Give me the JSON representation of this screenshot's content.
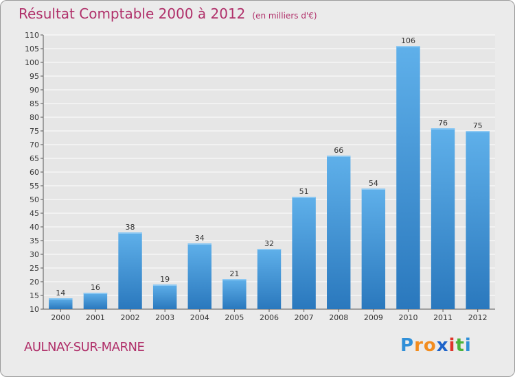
{
  "page": {
    "title": "Résultat Comptable 2000 à 2012",
    "subtitle": "(en milliers d'€)",
    "commune": "AULNAY-SUR-MARNE",
    "logo": {
      "letters": [
        "P",
        "r",
        "o",
        "x",
        "i",
        "t",
        "i"
      ],
      "colors": [
        "#2f8fd8",
        "#f28c1e",
        "#f28c1e",
        "#1e63c9",
        "#e0342a",
        "#4bb33a",
        "#2f8fd8"
      ]
    }
  },
  "chart_data": {
    "type": "bar",
    "title": "Résultat Comptable 2000 à 2012",
    "subtitle": "(en milliers d'€)",
    "categories": [
      "2000",
      "2001",
      "2002",
      "2003",
      "2004",
      "2005",
      "2006",
      "2007",
      "2008",
      "2009",
      "2010",
      "2011",
      "2012"
    ],
    "values": [
      14,
      16,
      38,
      19,
      34,
      21,
      32,
      51,
      66,
      54,
      106,
      76,
      75
    ],
    "ylim": [
      10,
      110
    ],
    "yticks": [
      10,
      15,
      20,
      25,
      30,
      35,
      40,
      45,
      50,
      55,
      60,
      65,
      70,
      75,
      80,
      85,
      90,
      95,
      100,
      105,
      110
    ],
    "xlabel": "",
    "ylabel": "",
    "grid": true,
    "bar_color": "#3d95d8",
    "bar_color_light": "#5fb0ea",
    "bar_color_dark": "#2a78bd"
  }
}
